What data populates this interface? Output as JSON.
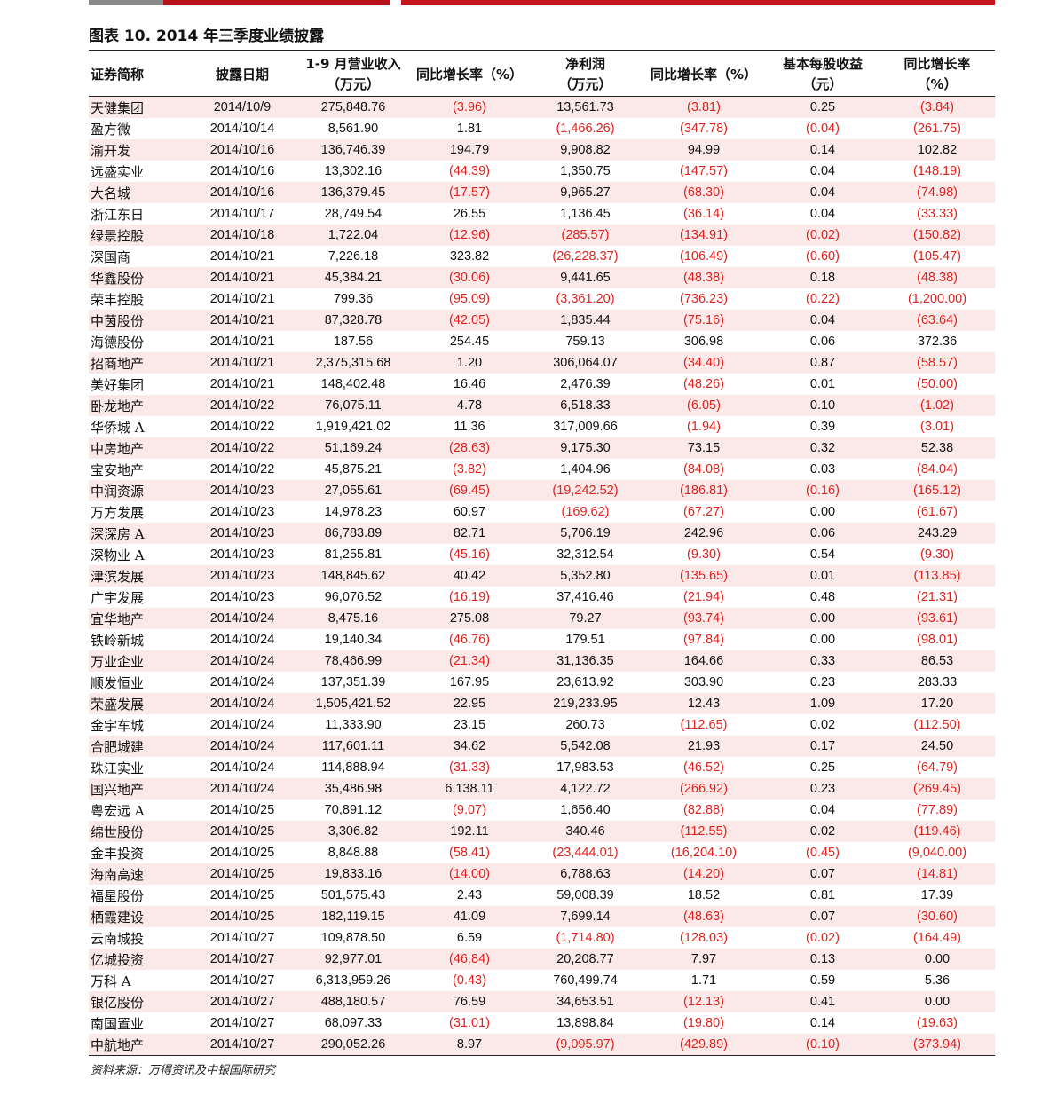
{
  "title": "图表 10. 2014 年三季度业绩披露",
  "colors": {
    "negative": "#e0221c",
    "row_stripe": "#fbe9e9",
    "accent_red": "#c4161c",
    "accent_gray": "#8a8a8a"
  },
  "headers": [
    [
      "证券简称"
    ],
    [
      "披露日期"
    ],
    [
      "1-9 月营业收入",
      "（万元）"
    ],
    [
      "同比增长率（%）"
    ],
    [
      "净利润",
      "（万元）"
    ],
    [
      "同比增长率（%）"
    ],
    [
      "基本每股收益",
      "（元）"
    ],
    [
      "同比增长率",
      "（%）"
    ]
  ],
  "rows": [
    [
      "天健集团",
      "2014/10/9",
      "275,848.76",
      "(3.96)",
      "13,561.73",
      "(3.81)",
      "0.25",
      "(3.84)"
    ],
    [
      "盈方微",
      "2014/10/14",
      "8,561.90",
      "1.81",
      "(1,466.26)",
      "(347.78)",
      "(0.04)",
      "(261.75)"
    ],
    [
      "渝开发",
      "2014/10/16",
      "136,746.39",
      "194.79",
      "9,908.82",
      "94.99",
      "0.14",
      "102.82"
    ],
    [
      "远盛实业",
      "2014/10/16",
      "13,302.16",
      "(44.39)",
      "1,350.75",
      "(147.57)",
      "0.04",
      "(148.19)"
    ],
    [
      "大名城",
      "2014/10/16",
      "136,379.45",
      "(17.57)",
      "9,965.27",
      "(68.30)",
      "0.04",
      "(74.98)"
    ],
    [
      "浙江东日",
      "2014/10/17",
      "28,749.54",
      "26.55",
      "1,136.45",
      "(36.14)",
      "0.04",
      "(33.33)"
    ],
    [
      "绿景控股",
      "2014/10/18",
      "1,722.04",
      "(12.96)",
      "(285.57)",
      "(134.91)",
      "(0.02)",
      "(150.82)"
    ],
    [
      "深国商",
      "2014/10/21",
      "7,226.18",
      "323.82",
      "(26,228.37)",
      "(106.49)",
      "(0.60)",
      "(105.47)"
    ],
    [
      "华鑫股份",
      "2014/10/21",
      "45,384.21",
      "(30.06)",
      "9,441.65",
      "(48.38)",
      "0.18",
      "(48.38)"
    ],
    [
      "荣丰控股",
      "2014/10/21",
      "799.36",
      "(95.09)",
      "(3,361.20)",
      "(736.23)",
      "(0.22)",
      "(1,200.00)"
    ],
    [
      "中茵股份",
      "2014/10/21",
      "87,328.78",
      "(42.05)",
      "1,835.44",
      "(75.16)",
      "0.04",
      "(63.64)"
    ],
    [
      "海德股份",
      "2014/10/21",
      "187.56",
      "254.45",
      "759.13",
      "306.98",
      "0.06",
      "372.36"
    ],
    [
      "招商地产",
      "2014/10/21",
      "2,375,315.68",
      "1.20",
      "306,064.07",
      "(34.40)",
      "0.87",
      "(58.57)"
    ],
    [
      "美好集团",
      "2014/10/21",
      "148,402.48",
      "16.46",
      "2,476.39",
      "(48.26)",
      "0.01",
      "(50.00)"
    ],
    [
      "卧龙地产",
      "2014/10/22",
      "76,075.11",
      "4.78",
      "6,518.33",
      "(6.05)",
      "0.10",
      "(1.02)"
    ],
    [
      "华侨城 A",
      "2014/10/22",
      "1,919,421.02",
      "11.36",
      "317,009.66",
      "(1.94)",
      "0.39",
      "(3.01)"
    ],
    [
      "中房地产",
      "2014/10/22",
      "51,169.24",
      "(28.63)",
      "9,175.30",
      "73.15",
      "0.32",
      "52.38"
    ],
    [
      "宝安地产",
      "2014/10/22",
      "45,875.21",
      "(3.82)",
      "1,404.96",
      "(84.08)",
      "0.03",
      "(84.04)"
    ],
    [
      "中润资源",
      "2014/10/23",
      "27,055.61",
      "(69.45)",
      "(19,242.52)",
      "(186.81)",
      "(0.16)",
      "(165.12)"
    ],
    [
      "万方发展",
      "2014/10/23",
      "14,978.23",
      "60.97",
      "(169.62)",
      "(67.27)",
      "0.00",
      "(61.67)"
    ],
    [
      "深深房 A",
      "2014/10/23",
      "86,783.89",
      "82.71",
      "5,706.19",
      "242.96",
      "0.06",
      "243.29"
    ],
    [
      "深物业 A",
      "2014/10/23",
      "81,255.81",
      "(45.16)",
      "32,312.54",
      "(9.30)",
      "0.54",
      "(9.30)"
    ],
    [
      "津滨发展",
      "2014/10/23",
      "148,845.62",
      "40.42",
      "5,352.80",
      "(135.65)",
      "0.01",
      "(113.85)"
    ],
    [
      "广宇发展",
      "2014/10/23",
      "96,076.52",
      "(16.19)",
      "37,416.46",
      "(21.94)",
      "0.48",
      "(21.31)"
    ],
    [
      "宜华地产",
      "2014/10/24",
      "8,475.16",
      "275.08",
      "79.27",
      "(93.74)",
      "0.00",
      "(93.61)"
    ],
    [
      "铁岭新城",
      "2014/10/24",
      "19,140.34",
      "(46.76)",
      "179.51",
      "(97.84)",
      "0.00",
      "(98.01)"
    ],
    [
      "万业企业",
      "2014/10/24",
      "78,466.99",
      "(21.34)",
      "31,136.35",
      "164.66",
      "0.33",
      "86.53"
    ],
    [
      "顺发恒业",
      "2014/10/24",
      "137,351.39",
      "167.95",
      "23,613.92",
      "303.90",
      "0.23",
      "283.33"
    ],
    [
      "荣盛发展",
      "2014/10/24",
      "1,505,421.52",
      "22.95",
      "219,233.95",
      "12.43",
      "1.09",
      "17.20"
    ],
    [
      "金宇车城",
      "2014/10/24",
      "11,333.90",
      "23.15",
      "260.73",
      "(112.65)",
      "0.02",
      "(112.50)"
    ],
    [
      "合肥城建",
      "2014/10/24",
      "117,601.11",
      "34.62",
      "5,542.08",
      "21.93",
      "0.17",
      "24.50"
    ],
    [
      "珠江实业",
      "2014/10/24",
      "114,888.94",
      "(31.33)",
      "17,983.53",
      "(46.52)",
      "0.25",
      "(64.79)"
    ],
    [
      "国兴地产",
      "2014/10/24",
      "35,486.98",
      "6,138.11",
      "4,122.72",
      "(266.92)",
      "0.23",
      "(269.45)"
    ],
    [
      "粤宏远 A",
      "2014/10/25",
      "70,891.12",
      "(9.07)",
      "1,656.40",
      "(82.88)",
      "0.04",
      "(77.89)"
    ],
    [
      "绵世股份",
      "2014/10/25",
      "3,306.82",
      "192.11",
      "340.46",
      "(112.55)",
      "0.02",
      "(119.46)"
    ],
    [
      "金丰投资",
      "2014/10/25",
      "8,848.88",
      "(58.41)",
      "(23,444.01)",
      "(16,204.10)",
      "(0.45)",
      "(9,040.00)"
    ],
    [
      "海南高速",
      "2014/10/25",
      "19,833.16",
      "(14.00)",
      "6,788.63",
      "(14.20)",
      "0.07",
      "(14.81)"
    ],
    [
      "福星股份",
      "2014/10/25",
      "501,575.43",
      "2.43",
      "59,008.39",
      "18.52",
      "0.81",
      "17.39"
    ],
    [
      "栖霞建设",
      "2014/10/25",
      "182,119.15",
      "41.09",
      "7,699.14",
      "(48.63)",
      "0.07",
      "(30.60)"
    ],
    [
      "云南城投",
      "2014/10/27",
      "109,878.50",
      "6.59",
      "(1,714.80)",
      "(128.03)",
      "(0.02)",
      "(164.49)"
    ],
    [
      "亿城投资",
      "2014/10/27",
      "92,977.01",
      "(46.84)",
      "20,208.77",
      "7.97",
      "0.13",
      "0.00"
    ],
    [
      "万科 A",
      "2014/10/27",
      "6,313,959.26",
      "(0.43)",
      "760,499.74",
      "1.71",
      "0.59",
      "5.36"
    ],
    [
      "银亿股份",
      "2014/10/27",
      "488,180.57",
      "76.59",
      "34,653.51",
      "(12.13)",
      "0.41",
      "0.00"
    ],
    [
      "南国置业",
      "2014/10/27",
      "68,097.33",
      "(31.01)",
      "13,898.84",
      "(19.80)",
      "0.14",
      "(19.63)"
    ],
    [
      "中航地产",
      "2014/10/27",
      "290,052.26",
      "8.97",
      "(9,095.97)",
      "(429.89)",
      "(0.10)",
      "(373.94)"
    ]
  ],
  "source": "资料来源：万得资讯及中银国际研究"
}
